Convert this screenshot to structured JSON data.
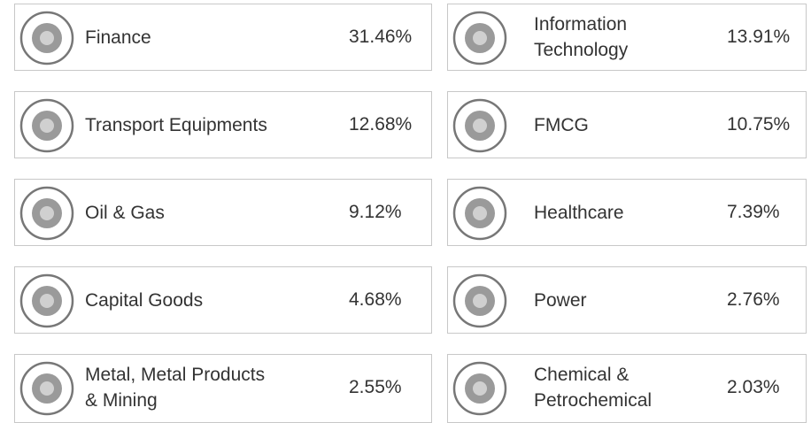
{
  "sectors": [
    {
      "name": [
        "Finance"
      ],
      "weight": "31.46%"
    },
    {
      "name": [
        "Information",
        "Technology"
      ],
      "weight": "13.91%"
    },
    {
      "name": [
        "Transport Equipments"
      ],
      "weight": "12.68%"
    },
    {
      "name": [
        "FMCG"
      ],
      "weight": "10.75%"
    },
    {
      "name": [
        "Oil & Gas"
      ],
      "weight": "9.12%"
    },
    {
      "name": [
        "Healthcare"
      ],
      "weight": "7.39%"
    },
    {
      "name": [
        "Capital Goods"
      ],
      "weight": "4.68%"
    },
    {
      "name": [
        "Power"
      ],
      "weight": "2.76%"
    },
    {
      "name": [
        "Metal, Metal Products",
        "& Mining"
      ],
      "weight": "2.55%"
    },
    {
      "name": [
        "Chemical &",
        "Petrochemical"
      ],
      "weight": "2.03%"
    }
  ]
}
